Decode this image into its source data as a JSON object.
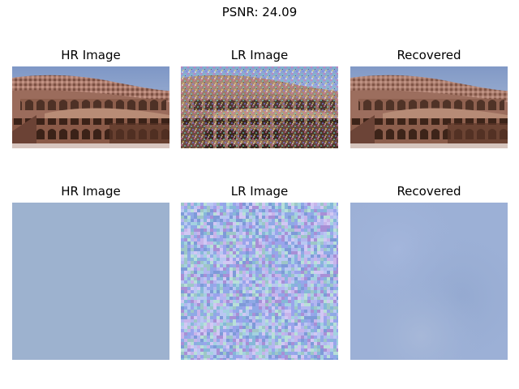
{
  "figure": {
    "suptitle": "PSNR: 24.09"
  },
  "rows": [
    {
      "panels": [
        {
          "title": "HR Image",
          "content": "colosseum interior photo, clean"
        },
        {
          "title": "LR Image",
          "content": "colosseum interior photo, noisy"
        },
        {
          "title": "Recovered",
          "content": "colosseum interior photo, denoised"
        }
      ]
    },
    {
      "panels": [
        {
          "title": "HR Image",
          "content": "flat blue sky patch",
          "color": "#9db2cf"
        },
        {
          "title": "LR Image",
          "content": "heavily noisy blue pixel mosaic",
          "color": "#a2b4d9"
        },
        {
          "title": "Recovered",
          "content": "smooth blue patch",
          "color": "#9cb0d6"
        }
      ]
    }
  ]
}
